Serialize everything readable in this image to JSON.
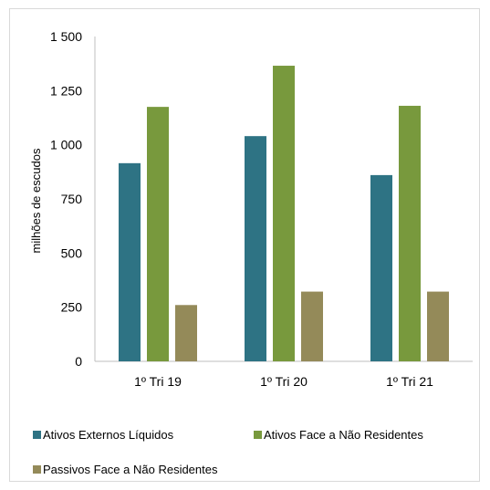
{
  "chart_data": {
    "type": "bar",
    "title": "",
    "xlabel": "",
    "ylabel": "milhões  de  escudos",
    "ylim": [
      0,
      1500
    ],
    "yticks": [
      0,
      250,
      500,
      750,
      1000,
      1250,
      1500
    ],
    "ytick_labels": [
      "0",
      "250",
      "500",
      "750",
      "1 000",
      "1 250",
      "1 500"
    ],
    "categories": [
      "1º Tri 19",
      "1º Tri 20",
      "1º Tri 21"
    ],
    "series": [
      {
        "name": "Ativos Externos Líquidos",
        "color": "#2e7384",
        "values": [
          915,
          1040,
          860
        ]
      },
      {
        "name": "Ativos Face a Não Residentes",
        "color": "#78993d",
        "values": [
          1175,
          1365,
          1180
        ]
      },
      {
        "name": "Passivos Face a Não Residentes",
        "color": "#948a59",
        "values": [
          260,
          322,
          322
        ]
      }
    ],
    "grid": false,
    "legend_position": "bottom"
  }
}
